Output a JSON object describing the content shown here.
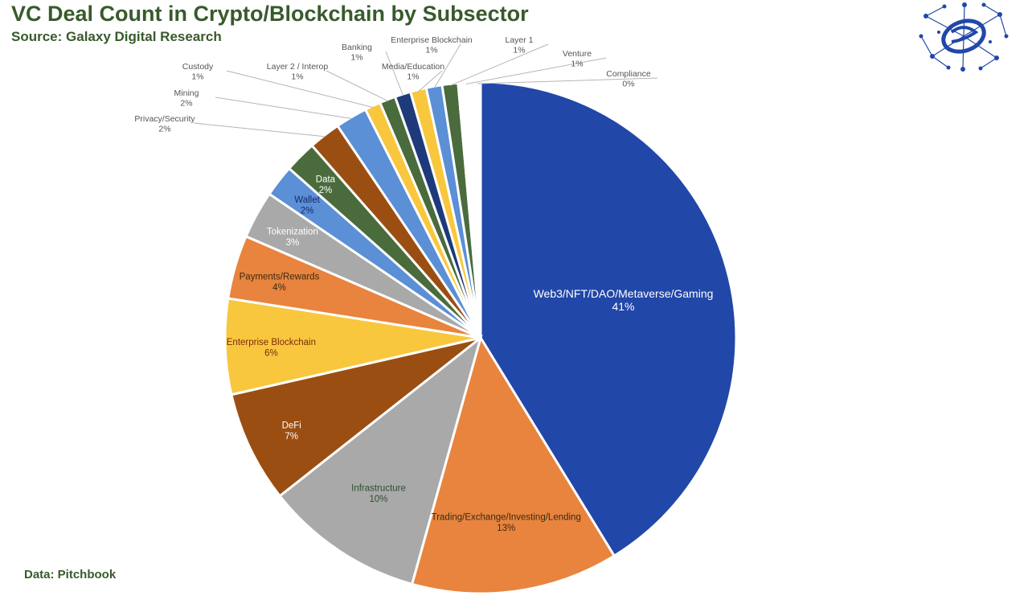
{
  "header": {
    "title": "VC Deal Count in Crypto/Blockchain by Subsector",
    "subtitle": "Source: Galaxy Digital Research"
  },
  "footer": {
    "note": "Data: Pitchbook"
  },
  "chart_data": {
    "type": "pie",
    "start_angle_deg": 0,
    "direction": "clockwise",
    "slices": [
      {
        "label": "Web3/NFT/DAO/Metaverse/Gaming",
        "value": 41,
        "display": "41%",
        "color": "#2147a8",
        "label_color": "#ffffff",
        "label_placement": "inside"
      },
      {
        "label": "Trading/Exchange/Investing/Lending",
        "value": 13,
        "display": "13%",
        "color": "#e8843e",
        "label_color": "#3a2a12",
        "label_placement": "inside"
      },
      {
        "label": "Infrastructure",
        "value": 10,
        "display": "10%",
        "color": "#a9a9a9",
        "label_color": "#2f4f2f",
        "label_placement": "inside"
      },
      {
        "label": "DeFi",
        "value": 7,
        "display": "7%",
        "color": "#9b4e12",
        "label_color": "#ffffff",
        "label_placement": "inside"
      },
      {
        "label": "Enterprise Blockchain",
        "value": 6,
        "display": "6%",
        "color": "#f9c73e",
        "label_color": "#7a2c0a",
        "label_placement": "inside"
      },
      {
        "label": "Payments/Rewards",
        "value": 4,
        "display": "4%",
        "color": "#e8843e",
        "label_color": "#3a2a12",
        "label_placement": "inside"
      },
      {
        "label": "Tokenization",
        "value": 3,
        "display": "3%",
        "color": "#a9a9a9",
        "label_color": "#ffffff",
        "label_placement": "inside"
      },
      {
        "label": "Wallet",
        "value": 2,
        "display": "2%",
        "color": "#5b8fd6",
        "label_color": "#1a2a6a",
        "label_placement": "inside"
      },
      {
        "label": "Data",
        "value": 2,
        "display": "2%",
        "color": "#4a6b3c",
        "label_color": "#ffffff",
        "label_placement": "inside"
      },
      {
        "label": "Privacy/Security",
        "value": 2,
        "display": "2%",
        "color": "#9b4e12",
        "label_color": "#555555",
        "label_placement": "outside"
      },
      {
        "label": "Mining",
        "value": 2,
        "display": "2%",
        "color": "#5b8fd6",
        "label_color": "#555555",
        "label_placement": "outside"
      },
      {
        "label": "Custody",
        "value": 1,
        "display": "1%",
        "color": "#f9c73e",
        "label_color": "#555555",
        "label_placement": "outside"
      },
      {
        "label": "Layer 2 / Interop",
        "value": 1,
        "display": "1%",
        "color": "#4a6b3c",
        "label_color": "#555555",
        "label_placement": "outside"
      },
      {
        "label": "Banking",
        "value": 1,
        "display": "1%",
        "color": "#1e3a7a",
        "label_color": "#555555",
        "label_placement": "outside"
      },
      {
        "label": "Media/Education",
        "value": 1,
        "display": "1%",
        "color": "#f9c73e",
        "label_color": "#555555",
        "label_placement": "outside"
      },
      {
        "label": "Enterprise Blockchain",
        "value": 1,
        "display": "1%",
        "color": "#5b8fd6",
        "label_color": "#555555",
        "label_placement": "outside"
      },
      {
        "label": "Layer 1",
        "value": 1,
        "display": "1%",
        "color": "#4a6b3c",
        "label_color": "#555555",
        "label_placement": "outside"
      },
      {
        "label": "Venture",
        "value": 1,
        "display": "1%",
        "color": "#ffffff",
        "label_color": "#555555",
        "label_placement": "outside"
      },
      {
        "label": "Compliance",
        "value": 0.4,
        "display": "0%",
        "color": "#ffffff",
        "label_color": "#555555",
        "label_placement": "outside"
      }
    ]
  },
  "logo": {
    "icon": "galaxy-network-logo-icon",
    "color": "#2147a8"
  }
}
